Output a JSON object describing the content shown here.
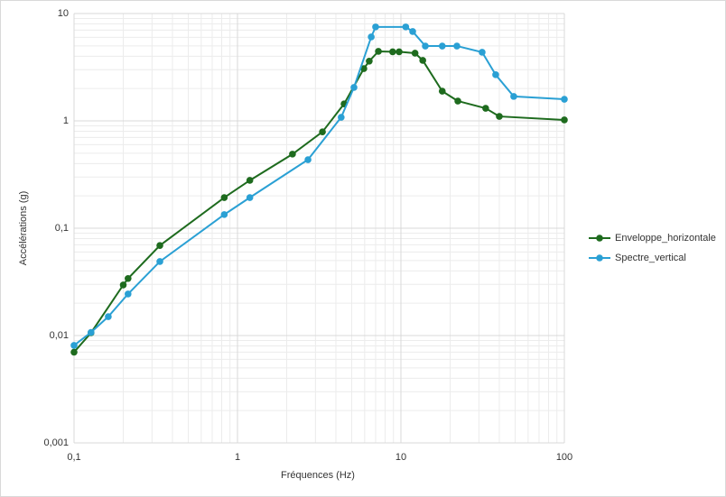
{
  "chart_data": {
    "type": "line",
    "x_label": "Fréquences (Hz)",
    "y_label": "Accélérations (g)",
    "xlog": true,
    "ylog": true,
    "grid": true,
    "minor_grid": true,
    "legend": "right",
    "xlim": [
      0.1,
      100
    ],
    "xticks": [
      {
        "value": 0.1,
        "label": "0,1"
      },
      1,
      10,
      100
    ],
    "ylim": [
      0.001,
      10
    ],
    "yticks": [
      {
        "value": 0.001,
        "label": "0,001"
      },
      {
        "value": 0.01,
        "label": "0,01"
      },
      {
        "value": 0.1,
        "label": "0,1"
      },
      1,
      10
    ],
    "series": [
      {
        "name": "Enveloppe_horizontale",
        "color": "#1e6b1e",
        "x": [
          0.1,
          0.127,
          0.2,
          0.214,
          0.335,
          0.83,
          1.19,
          2.17,
          3.31,
          4.49,
          5.93,
          6.4,
          7.28,
          8.9,
          9.75,
          12.2,
          13.6,
          17.9,
          22.3,
          33,
          40,
          100
        ],
        "values": [
          0.007,
          0.0106,
          0.0296,
          0.034,
          0.069,
          0.193,
          0.279,
          0.49,
          0.79,
          1.44,
          3.07,
          3.6,
          4.44,
          4.4,
          4.4,
          4.27,
          3.66,
          1.89,
          1.53,
          1.31,
          1.1,
          1.02
        ]
      },
      {
        "name": "Spectre_vertical",
        "color": "#2aa0d4",
        "x": [
          0.1,
          0.127,
          0.162,
          0.214,
          0.335,
          0.83,
          1.19,
          2.7,
          4.31,
          5.16,
          6.58,
          7.0,
          10.7,
          11.8,
          14.1,
          17.9,
          22,
          31.4,
          38,
          49,
          100
        ],
        "values": [
          0.0081,
          0.0107,
          0.015,
          0.0244,
          0.0489,
          0.134,
          0.193,
          0.435,
          1.08,
          2.05,
          6.05,
          7.5,
          7.5,
          6.8,
          4.98,
          4.98,
          4.98,
          4.36,
          2.69,
          1.69,
          1.59
        ]
      }
    ]
  }
}
